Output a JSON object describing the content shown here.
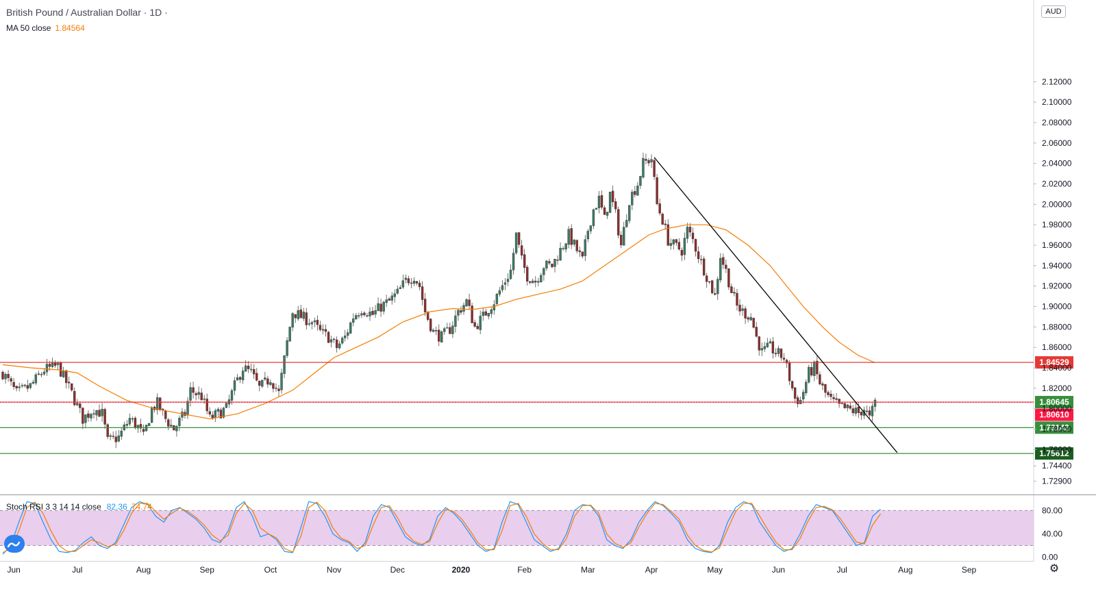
{
  "header": {
    "title": "British Pound / Australian Dollar · 1D ·",
    "ma_label": "MA 50 close",
    "ma_value": "1.84564",
    "currency": "AUD"
  },
  "rsi_legend": {
    "label": "Stoch RSI 3 3 14 14 close",
    "k_value": "82.36",
    "d_value": "74.74"
  },
  "colors": {
    "up": "#26a69a",
    "down": "#ef5350",
    "candle_up_body": "#3d7a63",
    "candle_down_body": "#8b2e2e",
    "ma": "#f57c00",
    "resistance": "#e53935",
    "support": "#388e3c",
    "trendline": "#000000",
    "stoch_k": "#2196f3",
    "stoch_d": "#f57c00",
    "stoch_band": "#e1bee7"
  },
  "chart_data": [
    {
      "type": "candlestick",
      "title": "British Pound / Australian Dollar · 1D ·",
      "y_axis": {
        "range": [
          1.716,
          2.2
        ],
        "ticks": [
          "1.72900",
          "1.74400",
          "1.76000",
          "1.78000",
          "1.80000",
          "1.82000",
          "1.84000",
          "1.86000",
          "1.88000",
          "1.90000",
          "1.92000",
          "1.94000",
          "1.96000",
          "1.98000",
          "2.00000",
          "2.02000",
          "2.04000",
          "2.06000",
          "2.08000",
          "2.10000",
          "2.12000"
        ]
      },
      "x_axis": {
        "labels": [
          "Jun",
          "Jul",
          "Aug",
          "Sep",
          "Oct",
          "Nov",
          "Dec",
          "2020",
          "Feb",
          "Mar",
          "Apr",
          "May",
          "Jun",
          "Jul",
          "Aug",
          "Sep"
        ],
        "label_day_index": [
          4,
          27,
          51,
          74,
          97,
          120,
          143,
          166,
          189,
          212,
          235,
          258,
          281,
          304,
          327,
          350
        ]
      },
      "anchors": [
        [
          0,
          1.835
        ],
        [
          5,
          1.815
        ],
        [
          10,
          1.822
        ],
        [
          15,
          1.838
        ],
        [
          20,
          1.842
        ],
        [
          25,
          1.815
        ],
        [
          29,
          1.79
        ],
        [
          33,
          1.8
        ],
        [
          36,
          1.795
        ],
        [
          38,
          1.768
        ],
        [
          42,
          1.772
        ],
        [
          46,
          1.79
        ],
        [
          49,
          1.782
        ],
        [
          51,
          1.772
        ],
        [
          54,
          1.8
        ],
        [
          56,
          1.805
        ],
        [
          59,
          1.79
        ],
        [
          62,
          1.78
        ],
        [
          66,
          1.795
        ],
        [
          68,
          1.818
        ],
        [
          72,
          1.812
        ],
        [
          75,
          1.79
        ],
        [
          78,
          1.795
        ],
        [
          81,
          1.8
        ],
        [
          84,
          1.822
        ],
        [
          87,
          1.84
        ],
        [
          90,
          1.835
        ],
        [
          93,
          1.82
        ],
        [
          97,
          1.83
        ],
        [
          100,
          1.815
        ],
        [
          103,
          1.865
        ],
        [
          105,
          1.895
        ],
        [
          108,
          1.89
        ],
        [
          112,
          1.885
        ],
        [
          115,
          1.875
        ],
        [
          118,
          1.87
        ],
        [
          121,
          1.86
        ],
        [
          124,
          1.87
        ],
        [
          127,
          1.89
        ],
        [
          130,
          1.898
        ],
        [
          134,
          1.892
        ],
        [
          137,
          1.9
        ],
        [
          140,
          1.905
        ],
        [
          143,
          1.913
        ],
        [
          146,
          1.925
        ],
        [
          149,
          1.93
        ],
        [
          151,
          1.92
        ],
        [
          153,
          1.895
        ],
        [
          156,
          1.875
        ],
        [
          159,
          1.87
        ],
        [
          162,
          1.878
        ],
        [
          165,
          1.895
        ],
        [
          168,
          1.905
        ],
        [
          171,
          1.88
        ],
        [
          174,
          1.89
        ],
        [
          176,
          1.898
        ],
        [
          178,
          1.905
        ],
        [
          180,
          1.915
        ],
        [
          182,
          1.925
        ],
        [
          184,
          1.935
        ],
        [
          186,
          1.97
        ],
        [
          188,
          1.945
        ],
        [
          190,
          1.93
        ],
        [
          193,
          1.925
        ],
        [
          196,
          1.94
        ],
        [
          199,
          1.94
        ],
        [
          202,
          1.955
        ],
        [
          205,
          1.97
        ],
        [
          207,
          1.96
        ],
        [
          210,
          1.945
        ],
        [
          212,
          1.975
        ],
        [
          214,
          1.995
        ],
        [
          216,
          2.005
        ],
        [
          218,
          1.985
        ],
        [
          220,
          2.01
        ],
        [
          222,
          1.99
        ],
        [
          224,
          1.96
        ],
        [
          227,
          2.005
        ],
        [
          230,
          2.02
        ],
        [
          232,
          2.04
        ],
        [
          235,
          2.045
        ],
        [
          237,
          2.0
        ],
        [
          239,
          1.985
        ],
        [
          241,
          1.965
        ],
        [
          243,
          1.96
        ],
        [
          246,
          1.955
        ],
        [
          248,
          1.975
        ],
        [
          250,
          1.965
        ],
        [
          252,
          1.95
        ],
        [
          255,
          1.93
        ],
        [
          258,
          1.91
        ],
        [
          260,
          1.95
        ],
        [
          262,
          1.935
        ],
        [
          264,
          1.915
        ],
        [
          266,
          1.9
        ],
        [
          268,
          1.895
        ],
        [
          271,
          1.89
        ],
        [
          273,
          1.87
        ],
        [
          275,
          1.855
        ],
        [
          278,
          1.86
        ],
        [
          280,
          1.855
        ],
        [
          283,
          1.85
        ],
        [
          285,
          1.83
        ],
        [
          287,
          1.81
        ],
        [
          289,
          1.808
        ],
        [
          292,
          1.835
        ],
        [
          294,
          1.84
        ],
        [
          296,
          1.825
        ],
        [
          298,
          1.815
        ],
        [
          300,
          1.808
        ],
        [
          303,
          1.802
        ],
        [
          305,
          1.8
        ],
        [
          308,
          1.798
        ],
        [
          310,
          1.796
        ],
        [
          312,
          1.8
        ],
        [
          314,
          1.79
        ],
        [
          316,
          1.806
        ]
      ],
      "ma50": [
        [
          0,
          1.843
        ],
        [
          10,
          1.84
        ],
        [
          20,
          1.838
        ],
        [
          27,
          1.835
        ],
        [
          35,
          1.822
        ],
        [
          45,
          1.808
        ],
        [
          55,
          1.8
        ],
        [
          65,
          1.795
        ],
        [
          75,
          1.79
        ],
        [
          85,
          1.795
        ],
        [
          95,
          1.805
        ],
        [
          105,
          1.818
        ],
        [
          113,
          1.835
        ],
        [
          120,
          1.85
        ],
        [
          128,
          1.86
        ],
        [
          136,
          1.87
        ],
        [
          145,
          1.885
        ],
        [
          155,
          1.895
        ],
        [
          163,
          1.898
        ],
        [
          170,
          1.897
        ],
        [
          178,
          1.9
        ],
        [
          186,
          1.907
        ],
        [
          194,
          1.912
        ],
        [
          202,
          1.917
        ],
        [
          210,
          1.925
        ],
        [
          218,
          1.94
        ],
        [
          226,
          1.955
        ],
        [
          234,
          1.97
        ],
        [
          240,
          1.976
        ],
        [
          248,
          1.98
        ],
        [
          255,
          1.98
        ],
        [
          262,
          1.975
        ],
        [
          270,
          1.96
        ],
        [
          278,
          1.94
        ],
        [
          284,
          1.92
        ],
        [
          290,
          1.9
        ],
        [
          297,
          1.88
        ],
        [
          303,
          1.865
        ],
        [
          310,
          1.852
        ],
        [
          316,
          1.845
        ]
      ],
      "horizontal_levels": [
        {
          "price": 1.84529,
          "label": "1.84529",
          "kind": "resistance"
        },
        {
          "price": 1.80645,
          "label": "1.80645",
          "kind": "resistance"
        },
        {
          "price": 1.78142,
          "label": "1.78142",
          "kind": "support"
        },
        {
          "price": 1.75612,
          "label": "1.75612",
          "kind": "support"
        }
      ],
      "current_price": {
        "price": 1.8061,
        "label": "1.80610"
      },
      "trendline": {
        "from": [
          236,
          2.046
        ],
        "to": [
          324,
          1.757
        ]
      }
    },
    {
      "type": "line",
      "title": "Stoch RSI 3 3 14 14 close",
      "y_axis": {
        "range": [
          -5,
          106
        ],
        "ticks": [
          "0.00",
          "40.00",
          "80.00"
        ]
      },
      "bands": [
        20,
        80
      ],
      "series": [
        {
          "name": "K",
          "values": [
            5,
            20,
            60,
            95,
            92,
            60,
            30,
            10,
            8,
            12,
            25,
            35,
            20,
            15,
            25,
            55,
            85,
            95,
            90,
            70,
            60,
            80,
            85,
            75,
            65,
            50,
            30,
            25,
            45,
            85,
            95,
            70,
            35,
            40,
            30,
            10,
            8,
            50,
            95,
            92,
            70,
            40,
            30,
            25,
            10,
            25,
            70,
            90,
            85,
            60,
            35,
            25,
            20,
            30,
            70,
            85,
            75,
            60,
            40,
            20,
            10,
            15,
            60,
            95,
            90,
            60,
            30,
            20,
            10,
            15,
            40,
            80,
            90,
            88,
            70,
            30,
            20,
            15,
            30,
            60,
            80,
            95,
            88,
            75,
            60,
            30,
            15,
            10,
            8,
            20,
            60,
            85,
            95,
            90,
            60,
            40,
            20,
            10,
            15,
            40,
            70,
            90,
            85,
            80,
            60,
            40,
            20,
            25,
            70,
            82
          ]
        },
        {
          "name": "D",
          "values": [
            8,
            15,
            45,
            85,
            94,
            75,
            45,
            20,
            10,
            10,
            20,
            30,
            25,
            18,
            22,
            45,
            75,
            92,
            92,
            78,
            65,
            75,
            84,
            78,
            68,
            55,
            38,
            28,
            38,
            75,
            92,
            80,
            50,
            40,
            33,
            15,
            9,
            35,
            85,
            94,
            80,
            50,
            33,
            27,
            15,
            20,
            55,
            85,
            88,
            68,
            42,
            28,
            22,
            27,
            58,
            82,
            78,
            65,
            46,
            25,
            13,
            13,
            45,
            88,
            92,
            70,
            40,
            24,
            13,
            13,
            32,
            70,
            88,
            89,
            75,
            40,
            24,
            17,
            25,
            52,
            75,
            92,
            90,
            78,
            65,
            38,
            20,
            12,
            9,
            16,
            48,
            78,
            92,
            92,
            70,
            47,
            26,
            13,
            13,
            32,
            62,
            85,
            87,
            81,
            66,
            46,
            26,
            23,
            55,
            74
          ]
        }
      ]
    }
  ]
}
